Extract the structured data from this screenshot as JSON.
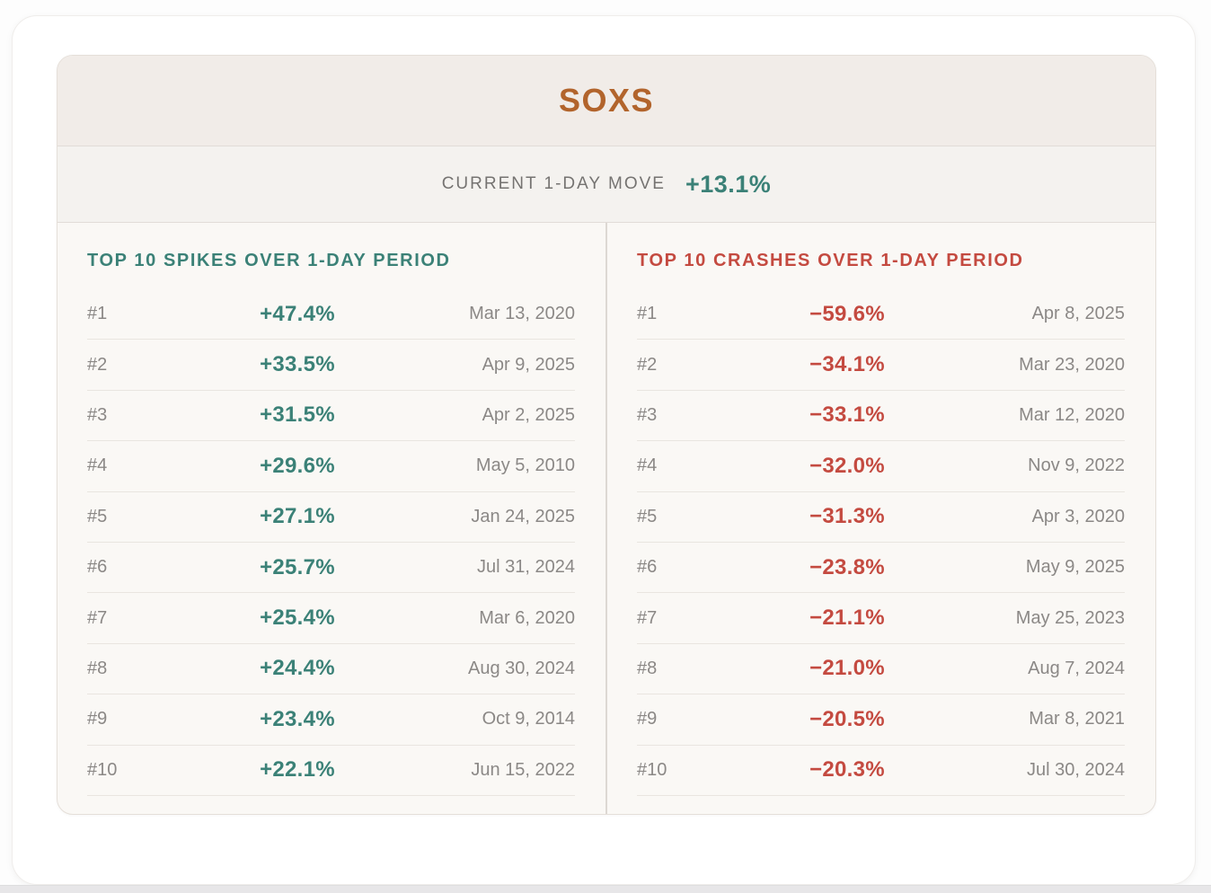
{
  "ticker": {
    "symbol": "SOXS"
  },
  "current_move": {
    "label": "CURRENT 1-DAY MOVE",
    "value": "+13.1%"
  },
  "spikes": {
    "title": "TOP 10 SPIKES OVER 1-DAY PERIOD",
    "rows": [
      {
        "rank": "#1",
        "change": "+47.4%",
        "date": "Mar 13, 2020"
      },
      {
        "rank": "#2",
        "change": "+33.5%",
        "date": "Apr 9, 2025"
      },
      {
        "rank": "#3",
        "change": "+31.5%",
        "date": "Apr 2, 2025"
      },
      {
        "rank": "#4",
        "change": "+29.6%",
        "date": "May 5, 2010"
      },
      {
        "rank": "#5",
        "change": "+27.1%",
        "date": "Jan 24, 2025"
      },
      {
        "rank": "#6",
        "change": "+25.7%",
        "date": "Jul 31, 2024"
      },
      {
        "rank": "#7",
        "change": "+25.4%",
        "date": "Mar 6, 2020"
      },
      {
        "rank": "#8",
        "change": "+24.4%",
        "date": "Aug 30, 2024"
      },
      {
        "rank": "#9",
        "change": "+23.4%",
        "date": "Oct 9, 2014"
      },
      {
        "rank": "#10",
        "change": "+22.1%",
        "date": "Jun 15, 2022"
      }
    ]
  },
  "crashes": {
    "title": "TOP 10 CRASHES OVER 1-DAY PERIOD",
    "rows": [
      {
        "rank": "#1",
        "change": "−59.6%",
        "date": "Apr 8, 2025"
      },
      {
        "rank": "#2",
        "change": "−34.1%",
        "date": "Mar 23, 2020"
      },
      {
        "rank": "#3",
        "change": "−33.1%",
        "date": "Mar 12, 2020"
      },
      {
        "rank": "#4",
        "change": "−32.0%",
        "date": "Nov 9, 2022"
      },
      {
        "rank": "#5",
        "change": "−31.3%",
        "date": "Apr 3, 2020"
      },
      {
        "rank": "#6",
        "change": "−23.8%",
        "date": "May 9, 2025"
      },
      {
        "rank": "#7",
        "change": "−21.1%",
        "date": "May 25, 2023"
      },
      {
        "rank": "#8",
        "change": "−21.0%",
        "date": "Aug 7, 2024"
      },
      {
        "rank": "#9",
        "change": "−20.5%",
        "date": "Mar 8, 2021"
      },
      {
        "rank": "#10",
        "change": "−20.3%",
        "date": "Jul 30, 2024"
      }
    ]
  },
  "colors": {
    "accent_orange": "#b2642c",
    "positive": "#3b8177",
    "negative": "#c44a40",
    "text_gray": "#8b8886",
    "label_gray": "#757371",
    "header_bg": "#f1ece8",
    "band_bg": "#f4f2ef",
    "panel_bg": "#faf8f5",
    "panel_border": "#e5dfd9",
    "hdivider": "#e1dcd8",
    "row_divider": "#e9e5e0",
    "col_divider": "#ddd8d3",
    "card_border": "#efedeb",
    "strip_bg": "#e7e6e8"
  }
}
